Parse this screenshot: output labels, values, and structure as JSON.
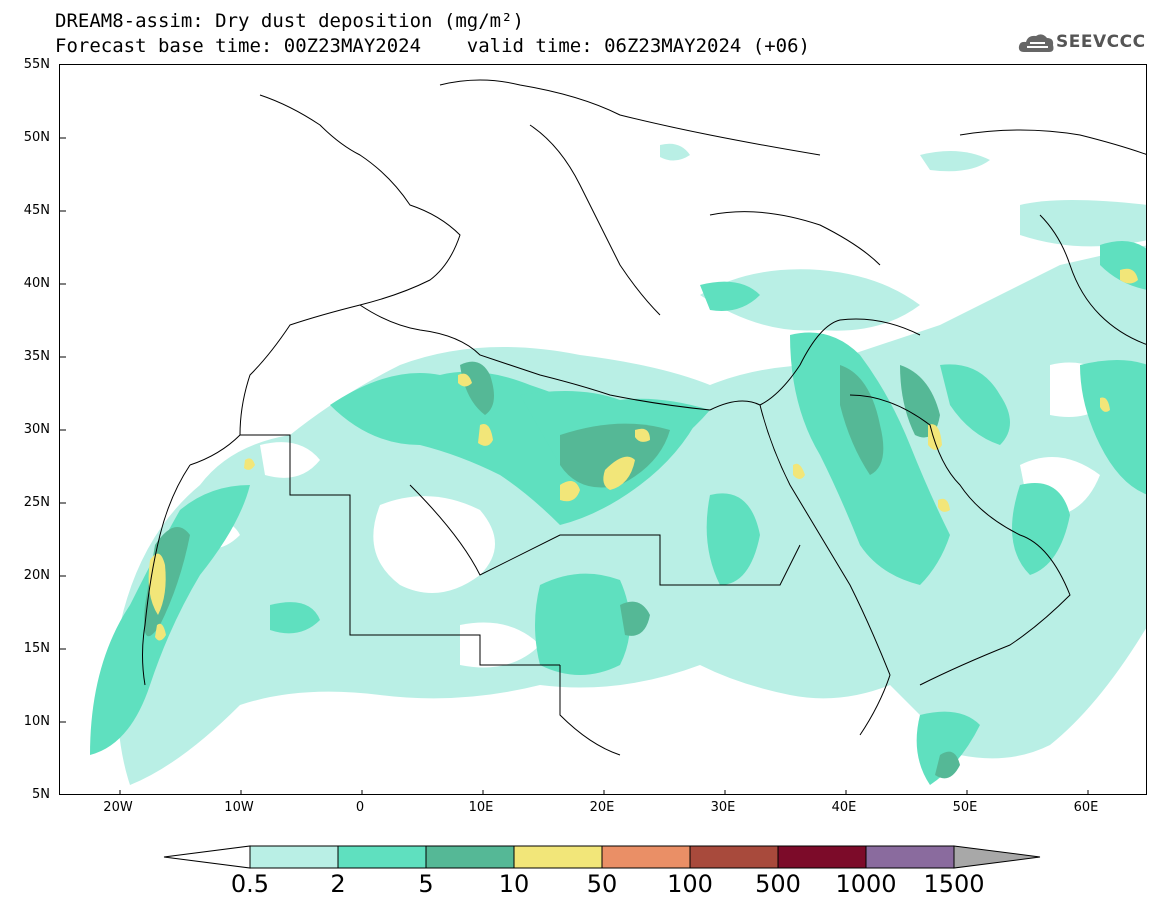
{
  "title": {
    "line1": "DREAM8-assim: Dry dust deposition (mg/m²)",
    "line2": "Forecast base time: 00Z23MAY2024    valid time: 06Z23MAY2024 (+06)"
  },
  "logo": {
    "text": "SEEVCCC",
    "icon": "cloud-logo-icon"
  },
  "axes": {
    "lon_range": [
      -25,
      65
    ],
    "lat_range": [
      5,
      55
    ],
    "y_ticks": [
      "55N",
      "50N",
      "45N",
      "40N",
      "35N",
      "30N",
      "25N",
      "20N",
      "15N",
      "10N",
      "5N"
    ],
    "x_ticks": [
      "20W",
      "10W",
      "0",
      "10E",
      "20E",
      "30E",
      "40E",
      "50E",
      "60E"
    ]
  },
  "colorbar": {
    "labels": [
      "0.5",
      "2",
      "5",
      "10",
      "50",
      "100",
      "500",
      "1000",
      "1500"
    ],
    "colors": [
      "#b9efe5",
      "#5fe0bf",
      "#55b896",
      "#f2e679",
      "#ea8f66",
      "#a84a3c",
      "#7c0b29",
      "#8a6b9e"
    ],
    "under_color": "#ffffff",
    "over_color": "#a8a8a8"
  }
}
